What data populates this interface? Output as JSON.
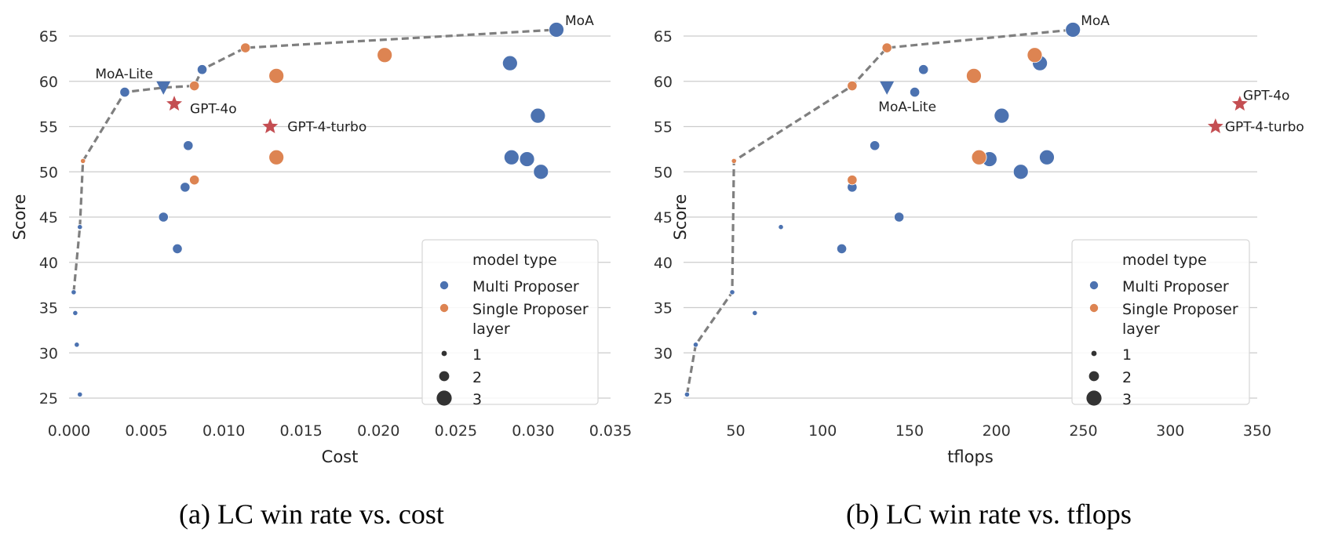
{
  "colors": {
    "multi": "#4c72b0",
    "single": "#dd8452",
    "gpt": "#c44e52",
    "frontier": "#7f7f7f",
    "grid": "#cccccc"
  },
  "captions": [
    "(a) LC win rate vs. cost",
    "(b) LC win rate vs. tflops"
  ],
  "chart_data": [
    {
      "type": "scatter",
      "xlabel": "Cost",
      "ylabel": "Score",
      "xlim": [
        0.0,
        0.035
      ],
      "ylim": [
        25,
        65
      ],
      "xticks": [
        "0.000",
        "0.005",
        "0.010",
        "0.015",
        "0.020",
        "0.025",
        "0.030",
        "0.035"
      ],
      "yticks": [
        "25",
        "30",
        "35",
        "40",
        "45",
        "50",
        "55",
        "60",
        "65"
      ],
      "grid": "horizontal",
      "legend": {
        "placement": "lower-right",
        "hue_title": "model type",
        "hue_entries": [
          "Multi Proposer",
          "Single Proposer"
        ],
        "size_title": "layer",
        "size_entries": [
          "1",
          "2",
          "3"
        ]
      },
      "multi_proposer": [
        {
          "x": 0.0003,
          "y": 36.7,
          "layer": 1
        },
        {
          "x": 0.0004,
          "y": 34.4,
          "layer": 1
        },
        {
          "x": 0.0005,
          "y": 30.9,
          "layer": 1
        },
        {
          "x": 0.0007,
          "y": 25.4,
          "layer": 1
        },
        {
          "x": 0.0007,
          "y": 43.9,
          "layer": 1
        },
        {
          "x": 0.0036,
          "y": 58.8,
          "layer": 2
        },
        {
          "x": 0.0061,
          "y": 45.0,
          "layer": 2
        },
        {
          "x": 0.007,
          "y": 41.5,
          "layer": 2
        },
        {
          "x": 0.0075,
          "y": 48.3,
          "layer": 2
        },
        {
          "x": 0.0077,
          "y": 52.9,
          "layer": 2
        },
        {
          "x": 0.0086,
          "y": 61.3,
          "layer": 2
        },
        {
          "x": 0.0285,
          "y": 62.0,
          "layer": 3
        },
        {
          "x": 0.0286,
          "y": 51.6,
          "layer": 3
        },
        {
          "x": 0.0296,
          "y": 51.4,
          "layer": 3
        },
        {
          "x": 0.0303,
          "y": 56.2,
          "layer": 3
        },
        {
          "x": 0.0305,
          "y": 50.0,
          "layer": 3
        },
        {
          "x": 0.0315,
          "y": 65.7,
          "layer": 3,
          "label": "MoA"
        }
      ],
      "single_proposer": [
        {
          "x": 0.0009,
          "y": 51.2,
          "layer": 1
        },
        {
          "x": 0.0081,
          "y": 49.1,
          "layer": 2
        },
        {
          "x": 0.0081,
          "y": 59.5,
          "layer": 2
        },
        {
          "x": 0.0114,
          "y": 63.7,
          "layer": 2
        },
        {
          "x": 0.0134,
          "y": 60.6,
          "layer": 3
        },
        {
          "x": 0.0134,
          "y": 51.6,
          "layer": 3
        },
        {
          "x": 0.0204,
          "y": 62.9,
          "layer": 3
        }
      ],
      "moa_lite": {
        "x": 0.0061,
        "y": 59.3,
        "label": "MoA-Lite"
      },
      "gpt_points": [
        {
          "x": 0.0068,
          "y": 57.5,
          "label": "GPT-4o"
        },
        {
          "x": 0.013,
          "y": 55.0,
          "label": "GPT-4-turbo"
        }
      ],
      "frontier": [
        [
          0.0003,
          36.7
        ],
        [
          0.0007,
          43.9
        ],
        [
          0.0009,
          51.2
        ],
        [
          0.0036,
          58.8
        ],
        [
          0.0061,
          59.3
        ],
        [
          0.0081,
          59.5
        ],
        [
          0.0086,
          61.3
        ],
        [
          0.0114,
          63.7
        ],
        [
          0.0315,
          65.7
        ]
      ]
    },
    {
      "type": "scatter",
      "xlabel": "tflops",
      "ylabel": "Score",
      "xlim": [
        20,
        350
      ],
      "ylim": [
        25,
        65
      ],
      "xticks": [
        "50",
        "100",
        "150",
        "200",
        "250",
        "300",
        "350"
      ],
      "yticks": [
        "25",
        "30",
        "35",
        "40",
        "45",
        "50",
        "55",
        "60",
        "65"
      ],
      "grid": "horizontal",
      "legend": {
        "placement": "lower-right",
        "hue_title": "model type",
        "hue_entries": [
          "Multi Proposer",
          "Single Proposer"
        ],
        "size_title": "layer",
        "size_entries": [
          "1",
          "2",
          "3"
        ]
      },
      "multi_proposer": [
        {
          "x": 22,
          "y": 25.4,
          "layer": 1
        },
        {
          "x": 27,
          "y": 30.9,
          "layer": 1
        },
        {
          "x": 48,
          "y": 36.7,
          "layer": 1
        },
        {
          "x": 61,
          "y": 34.4,
          "layer": 1
        },
        {
          "x": 76,
          "y": 43.9,
          "layer": 1
        },
        {
          "x": 111,
          "y": 41.5,
          "layer": 2
        },
        {
          "x": 117,
          "y": 48.3,
          "layer": 2
        },
        {
          "x": 130,
          "y": 52.9,
          "layer": 2
        },
        {
          "x": 144,
          "y": 45.0,
          "layer": 2
        },
        {
          "x": 153,
          "y": 58.8,
          "layer": 2
        },
        {
          "x": 158,
          "y": 61.3,
          "layer": 2
        },
        {
          "x": 196,
          "y": 51.4,
          "layer": 3
        },
        {
          "x": 203,
          "y": 56.2,
          "layer": 3
        },
        {
          "x": 214,
          "y": 50.0,
          "layer": 3
        },
        {
          "x": 225,
          "y": 62.0,
          "layer": 3
        },
        {
          "x": 229,
          "y": 51.6,
          "layer": 3
        },
        {
          "x": 244,
          "y": 65.7,
          "layer": 3,
          "label": "MoA"
        }
      ],
      "single_proposer": [
        {
          "x": 49,
          "y": 51.2,
          "layer": 1
        },
        {
          "x": 117,
          "y": 49.1,
          "layer": 2
        },
        {
          "x": 117,
          "y": 59.5,
          "layer": 2
        },
        {
          "x": 137,
          "y": 63.7,
          "layer": 2
        },
        {
          "x": 187,
          "y": 60.6,
          "layer": 3
        },
        {
          "x": 190,
          "y": 51.6,
          "layer": 3
        },
        {
          "x": 222,
          "y": 62.9,
          "layer": 3
        }
      ],
      "moa_lite": {
        "x": 137,
        "y": 59.3,
        "label": "MoA-Lite"
      },
      "gpt_points": [
        {
          "x": 340,
          "y": 57.5,
          "label": "GPT-4o"
        },
        {
          "x": 326,
          "y": 55.0,
          "label": "GPT-4-turbo"
        }
      ],
      "frontier": [
        [
          22,
          25.4
        ],
        [
          27,
          30.9
        ],
        [
          48,
          36.7
        ],
        [
          49,
          51.2
        ],
        [
          117,
          59.5
        ],
        [
          137,
          63.7
        ],
        [
          244,
          65.7
        ]
      ]
    }
  ]
}
